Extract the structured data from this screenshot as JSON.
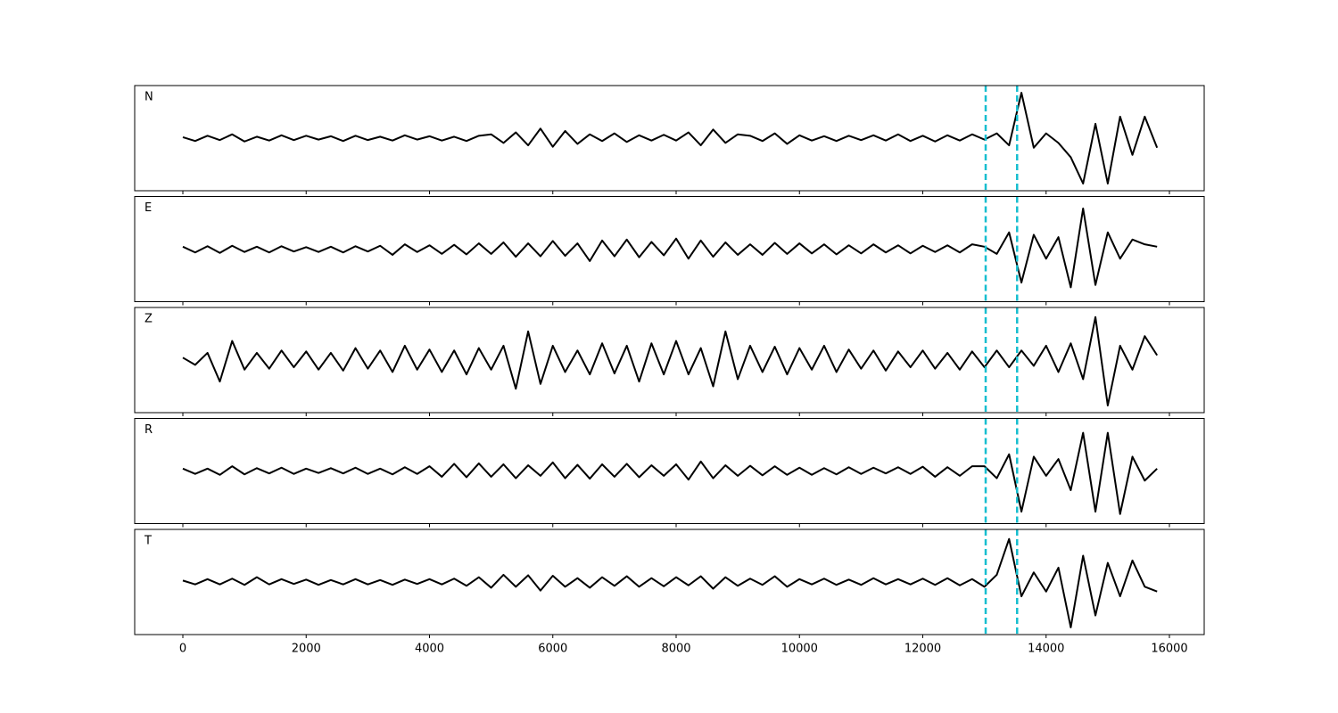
{
  "chart_data": {
    "type": "line",
    "x": [
      0,
      200,
      400,
      600,
      800,
      1000,
      1200,
      1400,
      1600,
      1800,
      2000,
      2200,
      2400,
      2600,
      2800,
      3000,
      3200,
      3400,
      3600,
      3800,
      4000,
      4200,
      4400,
      4600,
      4800,
      5000,
      5200,
      5400,
      5600,
      5800,
      6000,
      6200,
      6400,
      6600,
      6800,
      7000,
      7200,
      7400,
      7600,
      7800,
      8000,
      8200,
      8400,
      8600,
      8800,
      9000,
      9200,
      9400,
      9600,
      9800,
      10000,
      10200,
      10400,
      10600,
      10800,
      11000,
      11200,
      11400,
      11600,
      11800,
      12000,
      12200,
      12400,
      12600,
      12800,
      13000,
      13200,
      13400,
      13600,
      13800,
      14000,
      14200,
      14400,
      14600,
      14800,
      15000,
      15200,
      15400,
      15600,
      15800
    ],
    "xlim": [
      -781,
      16564
    ],
    "xticks": [
      0,
      2000,
      4000,
      6000,
      8000,
      10000,
      12000,
      14000,
      16000
    ],
    "ylim": [
      -1.1,
      1.1
    ],
    "vlines": {
      "values": [
        13020,
        13530
      ],
      "color": "#17becf",
      "style": "dashed"
    },
    "series": [
      {
        "name": "N",
        "color": "#000000",
        "values": [
          0.02,
          -0.06,
          0.05,
          -0.04,
          0.08,
          -0.07,
          0.03,
          -0.05,
          0.06,
          -0.04,
          0.05,
          -0.03,
          0.04,
          -0.06,
          0.05,
          -0.04,
          0.03,
          -0.05,
          0.06,
          -0.03,
          0.04,
          -0.05,
          0.03,
          -0.06,
          0.05,
          0.08,
          -0.1,
          0.12,
          -0.15,
          0.2,
          -0.18,
          0.15,
          -0.12,
          0.08,
          -0.06,
          0.1,
          -0.08,
          0.06,
          -0.05,
          0.07,
          -0.05,
          0.12,
          -0.15,
          0.18,
          -0.1,
          0.08,
          0.05,
          -0.06,
          0.1,
          -0.12,
          0.06,
          -0.05,
          0.04,
          -0.06,
          0.05,
          -0.04,
          0.06,
          -0.05,
          0.08,
          -0.06,
          0.05,
          -0.07,
          0.06,
          -0.05,
          0.08,
          -0.03,
          0.1,
          -0.15,
          0.95,
          -0.2,
          0.1,
          -0.1,
          -0.4,
          -0.95,
          0.3,
          -0.95,
          0.45,
          -0.35,
          0.45,
          -0.2
        ]
      },
      {
        "name": "E",
        "color": "#000000",
        "values": [
          0.05,
          -0.07,
          0.06,
          -0.08,
          0.07,
          -0.06,
          0.05,
          -0.07,
          0.06,
          -0.05,
          0.04,
          -0.06,
          0.05,
          -0.07,
          0.06,
          -0.05,
          0.07,
          -0.12,
          0.1,
          -0.06,
          0.08,
          -0.1,
          0.09,
          -0.11,
          0.12,
          -0.1,
          0.14,
          -0.16,
          0.12,
          -0.15,
          0.17,
          -0.14,
          0.12,
          -0.25,
          0.18,
          -0.15,
          0.2,
          -0.17,
          0.15,
          -0.13,
          0.22,
          -0.2,
          0.18,
          -0.16,
          0.14,
          -0.12,
          0.1,
          -0.12,
          0.13,
          -0.1,
          0.12,
          -0.09,
          0.1,
          -0.11,
          0.08,
          -0.09,
          0.1,
          -0.07,
          0.08,
          -0.09,
          0.07,
          -0.06,
          0.08,
          -0.07,
          0.1,
          0.05,
          -0.1,
          0.35,
          -0.7,
          0.3,
          -0.2,
          0.25,
          -0.8,
          0.85,
          -0.75,
          0.35,
          -0.2,
          0.2,
          0.1,
          0.05
        ]
      },
      {
        "name": "Z",
        "color": "#000000",
        "values": [
          0.05,
          -0.1,
          0.15,
          -0.45,
          0.4,
          -0.2,
          0.15,
          -0.18,
          0.2,
          -0.15,
          0.18,
          -0.2,
          0.15,
          -0.22,
          0.25,
          -0.18,
          0.2,
          -0.25,
          0.3,
          -0.2,
          0.22,
          -0.25,
          0.2,
          -0.3,
          0.25,
          -0.2,
          0.3,
          -0.6,
          0.6,
          -0.5,
          0.3,
          -0.25,
          0.2,
          -0.3,
          0.35,
          -0.28,
          0.3,
          -0.45,
          0.35,
          -0.3,
          0.4,
          -0.3,
          0.25,
          -0.55,
          0.6,
          -0.4,
          0.3,
          -0.25,
          0.28,
          -0.3,
          0.25,
          -0.2,
          0.3,
          -0.25,
          0.22,
          -0.18,
          0.2,
          -0.22,
          0.18,
          -0.15,
          0.2,
          -0.18,
          0.15,
          -0.2,
          0.18,
          -0.15,
          0.2,
          -0.15,
          0.2,
          -0.12,
          0.3,
          -0.25,
          0.35,
          -0.4,
          0.9,
          -0.95,
          0.3,
          -0.2,
          0.5,
          0.1
        ]
      },
      {
        "name": "R",
        "color": "#000000",
        "values": [
          0.05,
          -0.06,
          0.05,
          -0.08,
          0.1,
          -0.07,
          0.06,
          -0.05,
          0.07,
          -0.06,
          0.05,
          -0.04,
          0.06,
          -0.05,
          0.07,
          -0.06,
          0.05,
          -0.07,
          0.08,
          -0.06,
          0.1,
          -0.12,
          0.15,
          -0.13,
          0.16,
          -0.12,
          0.14,
          -0.15,
          0.12,
          -0.1,
          0.18,
          -0.15,
          0.13,
          -0.16,
          0.14,
          -0.12,
          0.15,
          -0.13,
          0.12,
          -0.1,
          0.14,
          -0.18,
          0.2,
          -0.15,
          0.12,
          -0.1,
          0.11,
          -0.09,
          0.1,
          -0.08,
          0.07,
          -0.08,
          0.06,
          -0.07,
          0.08,
          -0.06,
          0.07,
          -0.05,
          0.08,
          -0.06,
          0.09,
          -0.12,
          0.08,
          -0.1,
          0.1,
          0.1,
          -0.15,
          0.35,
          -0.85,
          0.3,
          -0.1,
          0.25,
          -0.4,
          0.8,
          -0.85,
          0.8,
          -0.9,
          0.3,
          -0.2,
          0.05
        ]
      },
      {
        "name": "T",
        "color": "#000000",
        "values": [
          0.03,
          -0.05,
          0.06,
          -0.05,
          0.07,
          -0.06,
          0.1,
          -0.05,
          0.06,
          -0.04,
          0.05,
          -0.06,
          0.04,
          -0.05,
          0.06,
          -0.05,
          0.04,
          -0.06,
          0.05,
          -0.04,
          0.06,
          -0.05,
          0.07,
          -0.08,
          0.1,
          -0.12,
          0.15,
          -0.1,
          0.14,
          -0.18,
          0.13,
          -0.1,
          0.08,
          -0.12,
          0.1,
          -0.08,
          0.12,
          -0.1,
          0.08,
          -0.09,
          0.1,
          -0.07,
          0.12,
          -0.14,
          0.1,
          -0.08,
          0.07,
          -0.06,
          0.12,
          -0.1,
          0.06,
          -0.05,
          0.07,
          -0.06,
          0.05,
          -0.06,
          0.08,
          -0.05,
          0.06,
          -0.05,
          0.07,
          -0.06,
          0.08,
          -0.07,
          0.06,
          -0.1,
          0.15,
          0.9,
          -0.3,
          0.2,
          -0.2,
          0.3,
          -0.95,
          0.55,
          -0.7,
          0.4,
          -0.3,
          0.45,
          -0.1,
          -0.2
        ]
      }
    ]
  }
}
